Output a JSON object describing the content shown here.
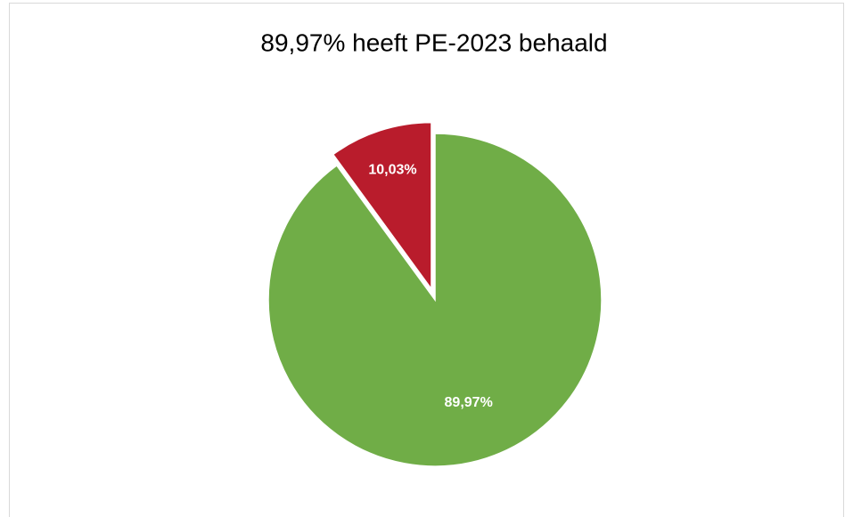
{
  "chart_data": {
    "type": "pie",
    "title": "89,97% heeft PE-2023 behaald",
    "values": [
      89.97,
      10.03
    ],
    "value_labels": [
      "89,97%",
      "10,03%"
    ],
    "colors": [
      "#70ad47",
      "#b91c2c"
    ],
    "explode": [
      false,
      true
    ]
  }
}
